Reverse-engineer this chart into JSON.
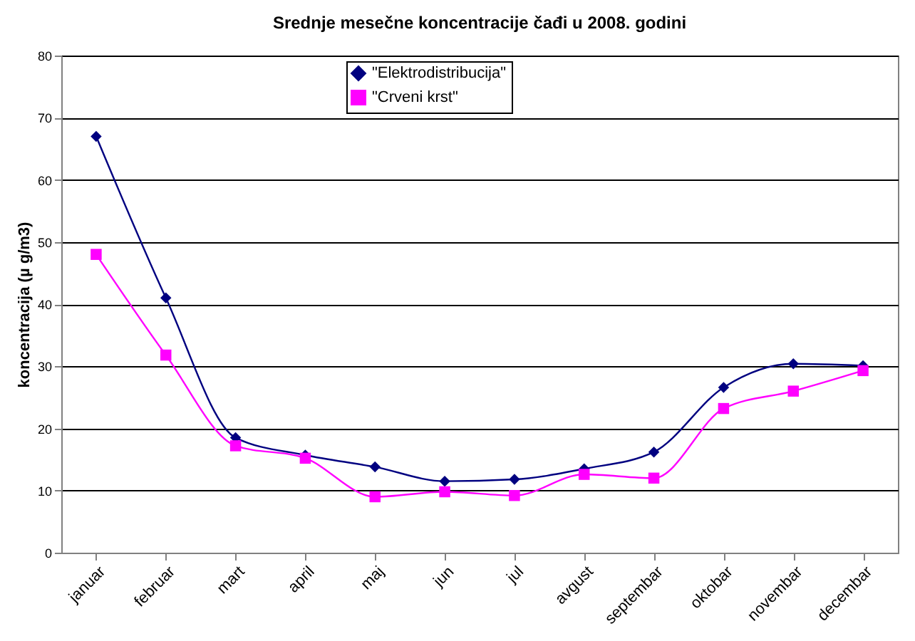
{
  "chart_data": {
    "type": "line",
    "title": "Srednje mesečne koncentracije čađi u 2008. godini",
    "ylabel": "koncentracija (µ g/m3)",
    "categories": [
      "januar",
      "februar",
      "mart",
      "april",
      "maj",
      "jun",
      "jul",
      "avgust",
      "septembar",
      "oktobar",
      "novembar",
      "decembar"
    ],
    "series": [
      {
        "name": "\"Elektrodistribucija\"",
        "color": "#000080",
        "marker": "diamond",
        "values": [
          67,
          41,
          18.5,
          15.7,
          13.8,
          11.5,
          11.8,
          13.5,
          16.2,
          26.6,
          30.4,
          30.1
        ]
      },
      {
        "name": "\"Crveni krst\"",
        "color": "#ff00ff",
        "marker": "square",
        "values": [
          48,
          31.8,
          17.2,
          15.2,
          9,
          9.8,
          9.2,
          12.6,
          12,
          23.2,
          26,
          29.3
        ]
      }
    ],
    "ylim": [
      0,
      80
    ],
    "yticks": [
      0,
      10,
      20,
      30,
      40,
      50,
      60,
      70,
      80
    ],
    "grid": "y",
    "legend": "top",
    "line_style": "solid"
  }
}
